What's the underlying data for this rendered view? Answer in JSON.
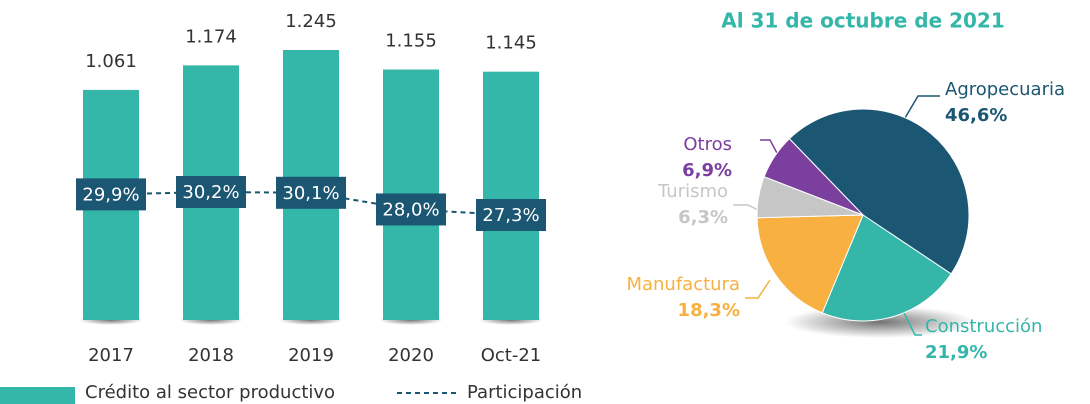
{
  "chart_data": [
    {
      "type": "bar",
      "categories": [
        "2017",
        "2018",
        "2019",
        "2020",
        "Oct-21"
      ],
      "series": [
        {
          "name": "Crédito al sector productivo",
          "color": "#34b6a9",
          "values": [
            1061,
            1174,
            1245,
            1155,
            1145
          ],
          "value_labels": [
            "1.061",
            "1.174",
            "1.245",
            "1.155",
            "1.145"
          ]
        },
        {
          "name": "Participación",
          "type": "line",
          "color": "#1b5673",
          "axis": "y2",
          "values": [
            29.9,
            30.2,
            30.1,
            28.0,
            27.3
          ],
          "value_labels": [
            "29,9%",
            "30,2%",
            "30,1%",
            "28,0%",
            "27,3%"
          ]
        }
      ]
    },
    {
      "type": "pie",
      "title": "Al 31 de octubre de 2021",
      "categories": [
        "Agropecuaria",
        "Construcción",
        "Manufactura",
        "Turismo",
        "Otros"
      ],
      "values": [
        46.6,
        21.9,
        18.3,
        6.3,
        6.9
      ],
      "value_labels": [
        "46,6%",
        "21,9%",
        "18,3%",
        "6,3%",
        "6,9%"
      ],
      "colors": [
        "#1b5673",
        "#34b6a9",
        "#f8b040",
        "#c6c6c6",
        "#7b3f9e"
      ]
    }
  ]
}
